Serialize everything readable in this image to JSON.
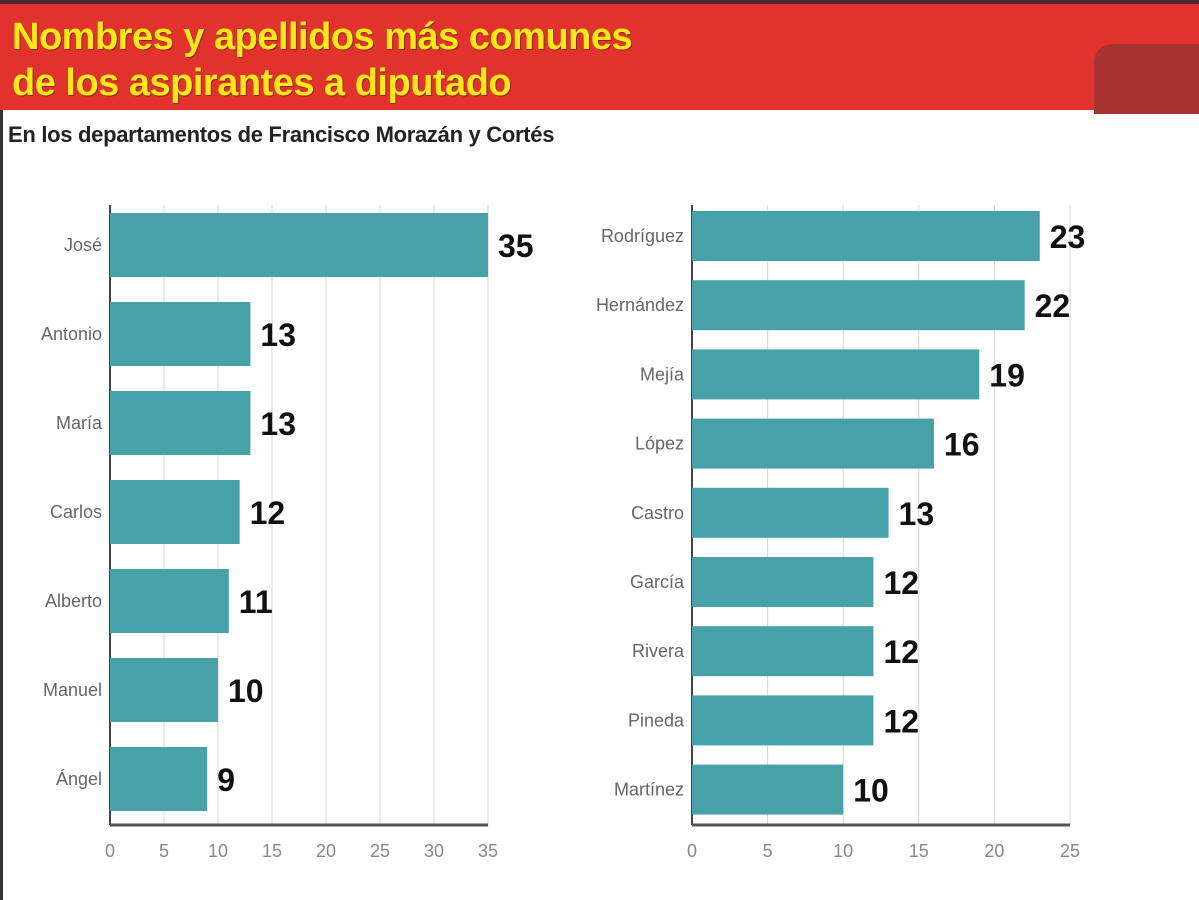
{
  "header": {
    "title_line1": "Nombres y apellidos más comunes",
    "title_line2": "de los aspirantes a diputado",
    "subtitle": "En los departamentos de Francisco Morazán y Cortés"
  },
  "colors": {
    "bar": "#46a1a8",
    "header": "#e1322d",
    "title": "#ffe81a"
  },
  "chart_data": [
    {
      "type": "bar",
      "orientation": "horizontal",
      "categories": [
        "José",
        "Antonio",
        "María",
        "Carlos",
        "Alberto",
        "Manuel",
        "Ángel"
      ],
      "values": [
        35,
        13,
        13,
        12,
        11,
        10,
        9
      ],
      "xlim": [
        0,
        35
      ],
      "ticks": [
        0,
        5,
        10,
        15,
        20,
        25,
        30,
        35
      ],
      "grid": true
    },
    {
      "type": "bar",
      "orientation": "horizontal",
      "categories": [
        "Rodríguez",
        "Hernández",
        "Mejía",
        "López",
        "Castro",
        "García",
        "Rivera",
        "Pineda",
        "Martínez"
      ],
      "values": [
        23,
        22,
        19,
        16,
        13,
        12,
        12,
        12,
        10
      ],
      "xlim": [
        0,
        25
      ],
      "ticks": [
        0,
        5,
        10,
        15,
        20,
        25
      ],
      "grid": true
    }
  ]
}
